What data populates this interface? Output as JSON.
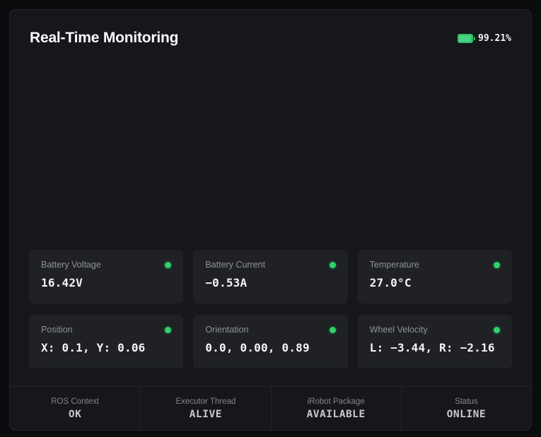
{
  "header": {
    "title": "Real-Time Monitoring",
    "battery_level": "99.21%"
  },
  "colors": {
    "status_ok": "#2fd36d",
    "battery_green": "#2fbf68",
    "panel_bg": "#16171a",
    "card_bg": "#1f2125",
    "outer_bg": "#0b0c0e"
  },
  "cards": [
    {
      "label": "Battery Voltage",
      "value": "16.42V",
      "status": "ok"
    },
    {
      "label": "Battery Current",
      "value": "−0.53A",
      "status": "ok"
    },
    {
      "label": "Temperature",
      "value": "27.0°C",
      "status": "ok"
    },
    {
      "label": "Position",
      "value": "X: 0.1, Y: 0.06",
      "status": "ok"
    },
    {
      "label": "Orientation",
      "value": "0.0, 0.00, 0.89",
      "status": "ok"
    },
    {
      "label": "Wheel Velocity",
      "value": "L: −3.44, R: −2.16",
      "status": "ok"
    }
  ],
  "footer": [
    {
      "label": "ROS Context",
      "value": "OK"
    },
    {
      "label": "Executor Thread",
      "value": "ALIVE"
    },
    {
      "label": "iRobot Package",
      "value": "AVAILABLE"
    },
    {
      "label": "Status",
      "value": "ONLINE"
    }
  ]
}
